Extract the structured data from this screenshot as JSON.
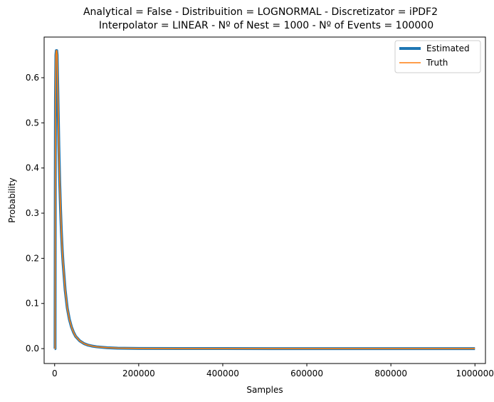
{
  "chart_data": {
    "type": "line",
    "title_line1": "Analytical = False - Distribuition = LOGNORMAL - Discretizator = iPDF2",
    "title_line2": "Interpolator = LINEAR - Nº of Nest = 1000 - Nº of Events = 100000",
    "xlabel": "Samples",
    "ylabel": "Probability",
    "xlim": [
      -25000,
      1025000
    ],
    "ylim": [
      -0.033,
      0.69
    ],
    "x_ticks": [
      0,
      200000,
      400000,
      600000,
      800000,
      1000000
    ],
    "x_tick_labels": [
      "0",
      "200000",
      "400000",
      "600000",
      "800000",
      "1000000"
    ],
    "y_ticks": [
      0.0,
      0.1,
      0.2,
      0.3,
      0.4,
      0.5,
      0.6
    ],
    "y_tick_labels": [
      "0.0",
      "0.1",
      "0.2",
      "0.3",
      "0.4",
      "0.5",
      "0.6"
    ],
    "legend_position": "top-right",
    "series": [
      {
        "name": "Estimated",
        "color": "#1f77b4",
        "x": [
          0,
          1000,
          1500,
          2000,
          3000,
          4000,
          5000,
          6000,
          7000,
          8000,
          10000,
          12000,
          14000,
          16000,
          18000,
          20000,
          25000,
          30000,
          35000,
          40000,
          45000,
          50000,
          60000,
          70000,
          80000,
          90000,
          100000,
          125000,
          150000,
          200000,
          300000,
          400000,
          600000,
          800000,
          1000000
        ],
        "values": [
          0.0,
          0.0,
          0.35,
          0.55,
          0.65,
          0.66,
          0.66,
          0.65,
          0.6,
          0.55,
          0.45,
          0.37,
          0.31,
          0.26,
          0.22,
          0.19,
          0.13,
          0.09,
          0.065,
          0.048,
          0.036,
          0.027,
          0.017,
          0.011,
          0.0075,
          0.0055,
          0.004,
          0.002,
          0.001,
          0.0004,
          0.0001,
          5e-05,
          0.0,
          0.0,
          0.0
        ]
      },
      {
        "name": "Truth",
        "color": "#ff7f0e",
        "x": [
          0,
          1000,
          1500,
          2000,
          3000,
          4000,
          5000,
          6000,
          7000,
          8000,
          10000,
          12000,
          14000,
          16000,
          18000,
          20000,
          25000,
          30000,
          35000,
          40000,
          45000,
          50000,
          60000,
          70000,
          80000,
          90000,
          100000,
          125000,
          150000,
          200000,
          300000,
          400000,
          600000,
          800000,
          1000000
        ],
        "values": [
          0.0,
          0.0,
          0.35,
          0.55,
          0.65,
          0.66,
          0.66,
          0.65,
          0.6,
          0.55,
          0.45,
          0.37,
          0.31,
          0.26,
          0.22,
          0.19,
          0.13,
          0.09,
          0.065,
          0.048,
          0.036,
          0.027,
          0.017,
          0.011,
          0.0075,
          0.0055,
          0.004,
          0.002,
          0.001,
          0.0004,
          0.0001,
          5e-05,
          0.0,
          0.0,
          0.0
        ]
      }
    ]
  }
}
